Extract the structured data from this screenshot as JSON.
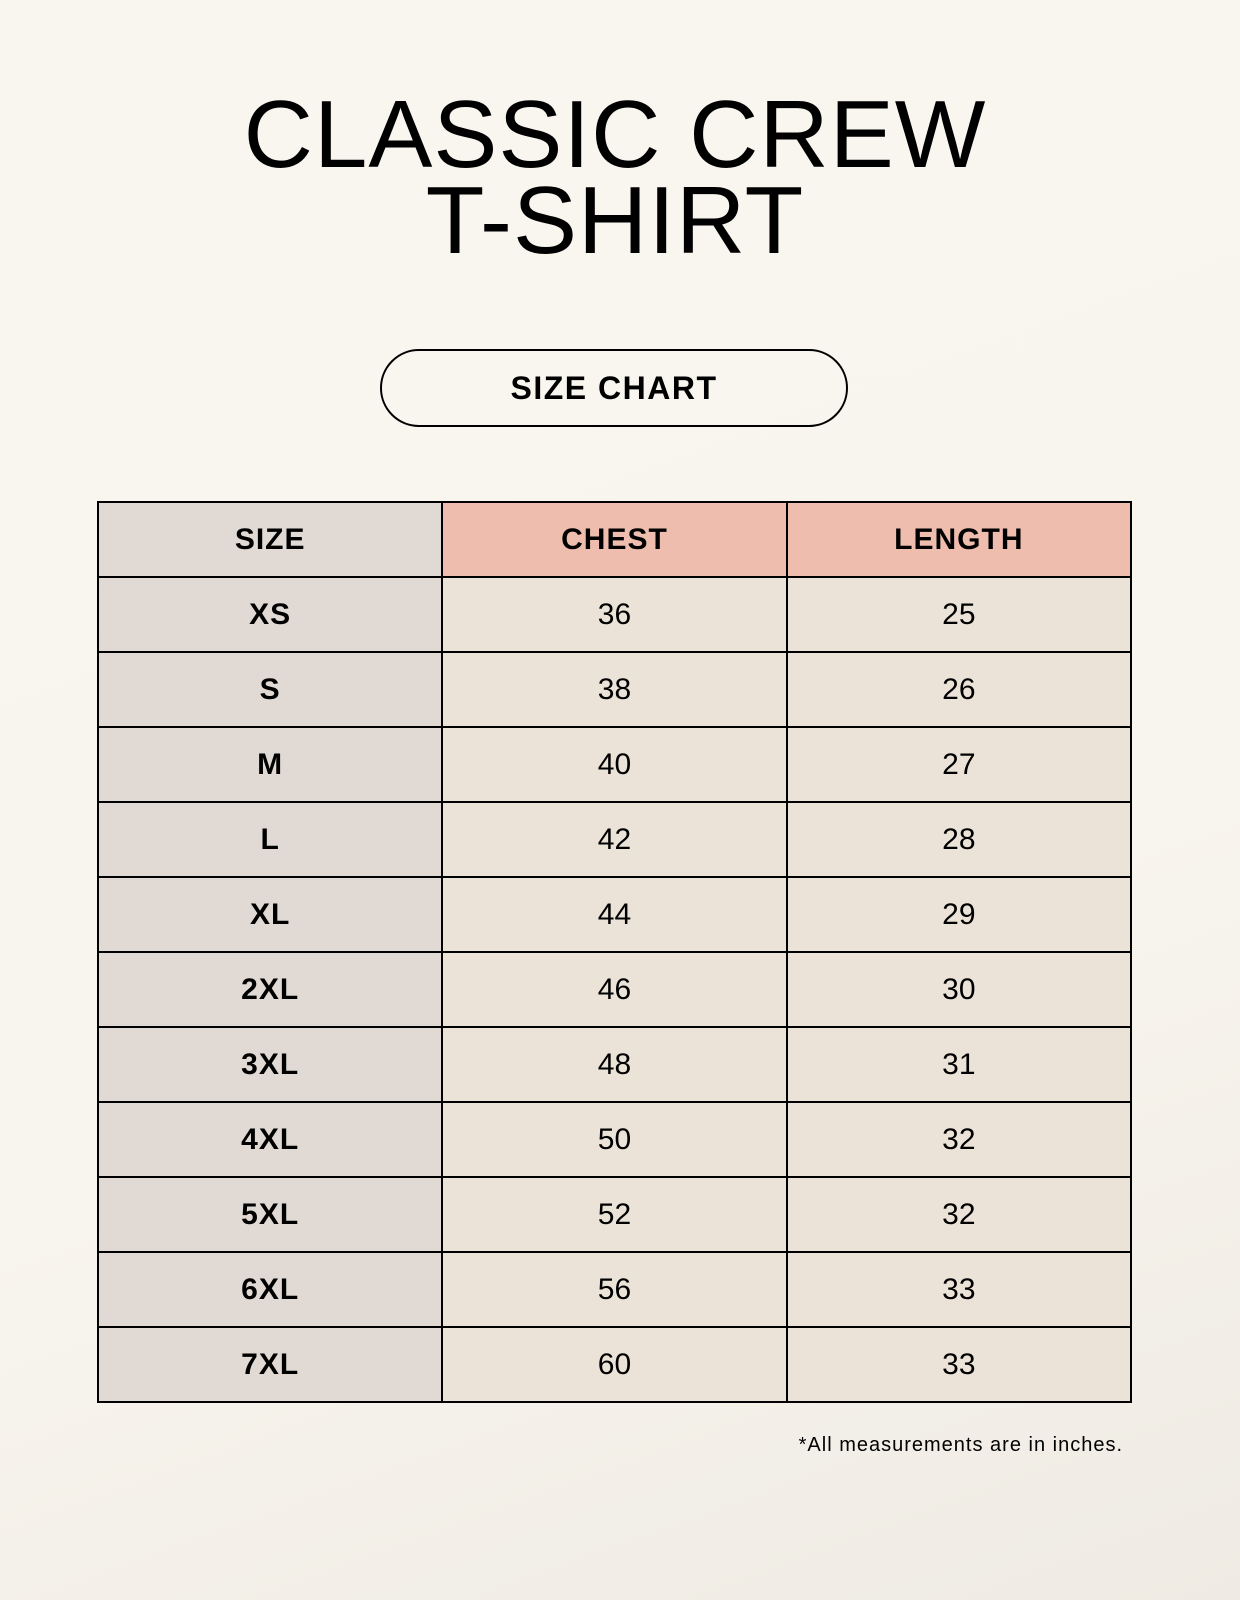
{
  "title": {
    "line1": "CLASSIC CREW",
    "line2": "T-SHIRT"
  },
  "badge": "SIZE CHART",
  "table": {
    "headers": [
      "SIZE",
      "CHEST",
      "LENGTH"
    ],
    "rows": [
      [
        "XS",
        "36",
        "25"
      ],
      [
        "S",
        "38",
        "26"
      ],
      [
        "M",
        "40",
        "27"
      ],
      [
        "L",
        "42",
        "28"
      ],
      [
        "XL",
        "44",
        "29"
      ],
      [
        "2XL",
        "46",
        "30"
      ],
      [
        "3XL",
        "48",
        "31"
      ],
      [
        "4XL",
        "50",
        "32"
      ],
      [
        "5XL",
        "52",
        "32"
      ],
      [
        "6XL",
        "56",
        "33"
      ],
      [
        "7XL",
        "60",
        "33"
      ]
    ]
  },
  "footnote": "*All measurements are in inches.",
  "colors": {
    "size_column": "#e1d9d3",
    "header_accent": "#eebdae",
    "value_cells": "#ebe3d8"
  }
}
